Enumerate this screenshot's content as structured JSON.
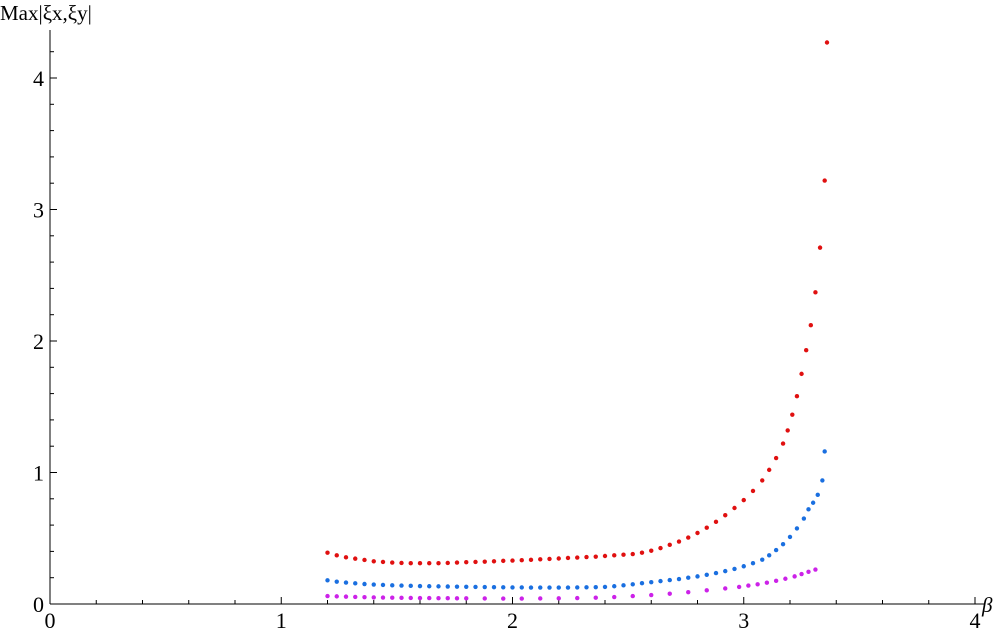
{
  "chart_data": {
    "type": "scatter",
    "title": "",
    "xlabel": "β",
    "ylabel": "Max|ξx,ξy|",
    "xlim": [
      0,
      4
    ],
    "ylim": [
      0,
      4.35
    ],
    "grid": false,
    "x_ticks": [
      0,
      1,
      2,
      3,
      4
    ],
    "y_ticks": [
      1,
      2,
      3,
      4
    ],
    "y_zero_label": "0",
    "series": [
      {
        "color": "#e01010",
        "points": [
          [
            1.2,
            0.39
          ],
          [
            1.24,
            0.37
          ],
          [
            1.28,
            0.355
          ],
          [
            1.32,
            0.345
          ],
          [
            1.36,
            0.335
          ],
          [
            1.4,
            0.325
          ],
          [
            1.44,
            0.32
          ],
          [
            1.48,
            0.315
          ],
          [
            1.52,
            0.312
          ],
          [
            1.56,
            0.31
          ],
          [
            1.6,
            0.31
          ],
          [
            1.64,
            0.31
          ],
          [
            1.68,
            0.31
          ],
          [
            1.72,
            0.312
          ],
          [
            1.76,
            0.315
          ],
          [
            1.8,
            0.318
          ],
          [
            1.84,
            0.32
          ],
          [
            1.88,
            0.322
          ],
          [
            1.92,
            0.325
          ],
          [
            1.96,
            0.328
          ],
          [
            2.0,
            0.33
          ],
          [
            2.04,
            0.333
          ],
          [
            2.08,
            0.336
          ],
          [
            2.12,
            0.34
          ],
          [
            2.16,
            0.343
          ],
          [
            2.2,
            0.346
          ],
          [
            2.24,
            0.35
          ],
          [
            2.28,
            0.353
          ],
          [
            2.32,
            0.357
          ],
          [
            2.36,
            0.36
          ],
          [
            2.4,
            0.365
          ],
          [
            2.44,
            0.37
          ],
          [
            2.48,
            0.375
          ],
          [
            2.52,
            0.38
          ],
          [
            2.56,
            0.39
          ],
          [
            2.6,
            0.405
          ],
          [
            2.64,
            0.425
          ],
          [
            2.68,
            0.45
          ],
          [
            2.72,
            0.475
          ],
          [
            2.76,
            0.505
          ],
          [
            2.8,
            0.54
          ],
          [
            2.84,
            0.58
          ],
          [
            2.88,
            0.625
          ],
          [
            2.92,
            0.675
          ],
          [
            2.96,
            0.73
          ],
          [
            3.0,
            0.79
          ],
          [
            3.04,
            0.86
          ],
          [
            3.08,
            0.94
          ],
          [
            3.11,
            1.02
          ],
          [
            3.14,
            1.11
          ],
          [
            3.17,
            1.22
          ],
          [
            3.19,
            1.32
          ],
          [
            3.21,
            1.44
          ],
          [
            3.23,
            1.58
          ],
          [
            3.25,
            1.75
          ],
          [
            3.27,
            1.93
          ],
          [
            3.29,
            2.12
          ],
          [
            3.31,
            2.37
          ],
          [
            3.33,
            2.71
          ],
          [
            3.35,
            3.22
          ],
          [
            3.36,
            4.27
          ]
        ]
      },
      {
        "color": "#1a6fe0",
        "points": [
          [
            1.2,
            0.18
          ],
          [
            1.24,
            0.17
          ],
          [
            1.28,
            0.163
          ],
          [
            1.32,
            0.157
          ],
          [
            1.36,
            0.152
          ],
          [
            1.4,
            0.148
          ],
          [
            1.44,
            0.145
          ],
          [
            1.48,
            0.142
          ],
          [
            1.52,
            0.14
          ],
          [
            1.56,
            0.138
          ],
          [
            1.6,
            0.136
          ],
          [
            1.64,
            0.135
          ],
          [
            1.68,
            0.134
          ],
          [
            1.72,
            0.133
          ],
          [
            1.76,
            0.132
          ],
          [
            1.8,
            0.131
          ],
          [
            1.84,
            0.13
          ],
          [
            1.88,
            0.129
          ],
          [
            1.92,
            0.128
          ],
          [
            1.96,
            0.127
          ],
          [
            2.0,
            0.126
          ],
          [
            2.04,
            0.126
          ],
          [
            2.08,
            0.125
          ],
          [
            2.12,
            0.125
          ],
          [
            2.16,
            0.125
          ],
          [
            2.2,
            0.125
          ],
          [
            2.24,
            0.125
          ],
          [
            2.28,
            0.126
          ],
          [
            2.32,
            0.127
          ],
          [
            2.36,
            0.128
          ],
          [
            2.4,
            0.13
          ],
          [
            2.44,
            0.135
          ],
          [
            2.48,
            0.142
          ],
          [
            2.52,
            0.15
          ],
          [
            2.56,
            0.158
          ],
          [
            2.6,
            0.166
          ],
          [
            2.64,
            0.174
          ],
          [
            2.68,
            0.182
          ],
          [
            2.72,
            0.19
          ],
          [
            2.76,
            0.2
          ],
          [
            2.8,
            0.21
          ],
          [
            2.84,
            0.222
          ],
          [
            2.88,
            0.235
          ],
          [
            2.92,
            0.25
          ],
          [
            2.96,
            0.267
          ],
          [
            3.0,
            0.287
          ],
          [
            3.04,
            0.31
          ],
          [
            3.08,
            0.337
          ],
          [
            3.11,
            0.37
          ],
          [
            3.14,
            0.41
          ],
          [
            3.17,
            0.455
          ],
          [
            3.2,
            0.51
          ],
          [
            3.23,
            0.575
          ],
          [
            3.26,
            0.65
          ],
          [
            3.28,
            0.72
          ],
          [
            3.3,
            0.77
          ],
          [
            3.32,
            0.83
          ],
          [
            3.34,
            0.94
          ],
          [
            3.35,
            1.16
          ]
        ]
      },
      {
        "color": "#cc22e8",
        "points": [
          [
            1.2,
            0.06
          ],
          [
            1.24,
            0.058
          ],
          [
            1.28,
            0.056
          ],
          [
            1.32,
            0.054
          ],
          [
            1.36,
            0.052
          ],
          [
            1.4,
            0.05
          ],
          [
            1.44,
            0.049
          ],
          [
            1.48,
            0.048
          ],
          [
            1.52,
            0.047
          ],
          [
            1.56,
            0.046
          ],
          [
            1.6,
            0.045
          ],
          [
            1.64,
            0.045
          ],
          [
            1.68,
            0.044
          ],
          [
            1.72,
            0.044
          ],
          [
            1.76,
            0.043
          ],
          [
            1.8,
            0.043
          ],
          [
            1.88,
            0.042
          ],
          [
            1.96,
            0.041
          ],
          [
            2.04,
            0.041
          ],
          [
            2.12,
            0.042
          ],
          [
            2.2,
            0.043
          ],
          [
            2.28,
            0.045
          ],
          [
            2.36,
            0.048
          ],
          [
            2.44,
            0.053
          ],
          [
            2.52,
            0.06
          ],
          [
            2.6,
            0.068
          ],
          [
            2.68,
            0.078
          ],
          [
            2.76,
            0.09
          ],
          [
            2.84,
            0.104
          ],
          [
            2.92,
            0.118
          ],
          [
            2.98,
            0.13
          ],
          [
            3.02,
            0.14
          ],
          [
            3.06,
            0.15
          ],
          [
            3.1,
            0.162
          ],
          [
            3.14,
            0.176
          ],
          [
            3.18,
            0.192
          ],
          [
            3.22,
            0.21
          ],
          [
            3.25,
            0.228
          ],
          [
            3.28,
            0.245
          ],
          [
            3.31,
            0.262
          ]
        ]
      }
    ]
  }
}
